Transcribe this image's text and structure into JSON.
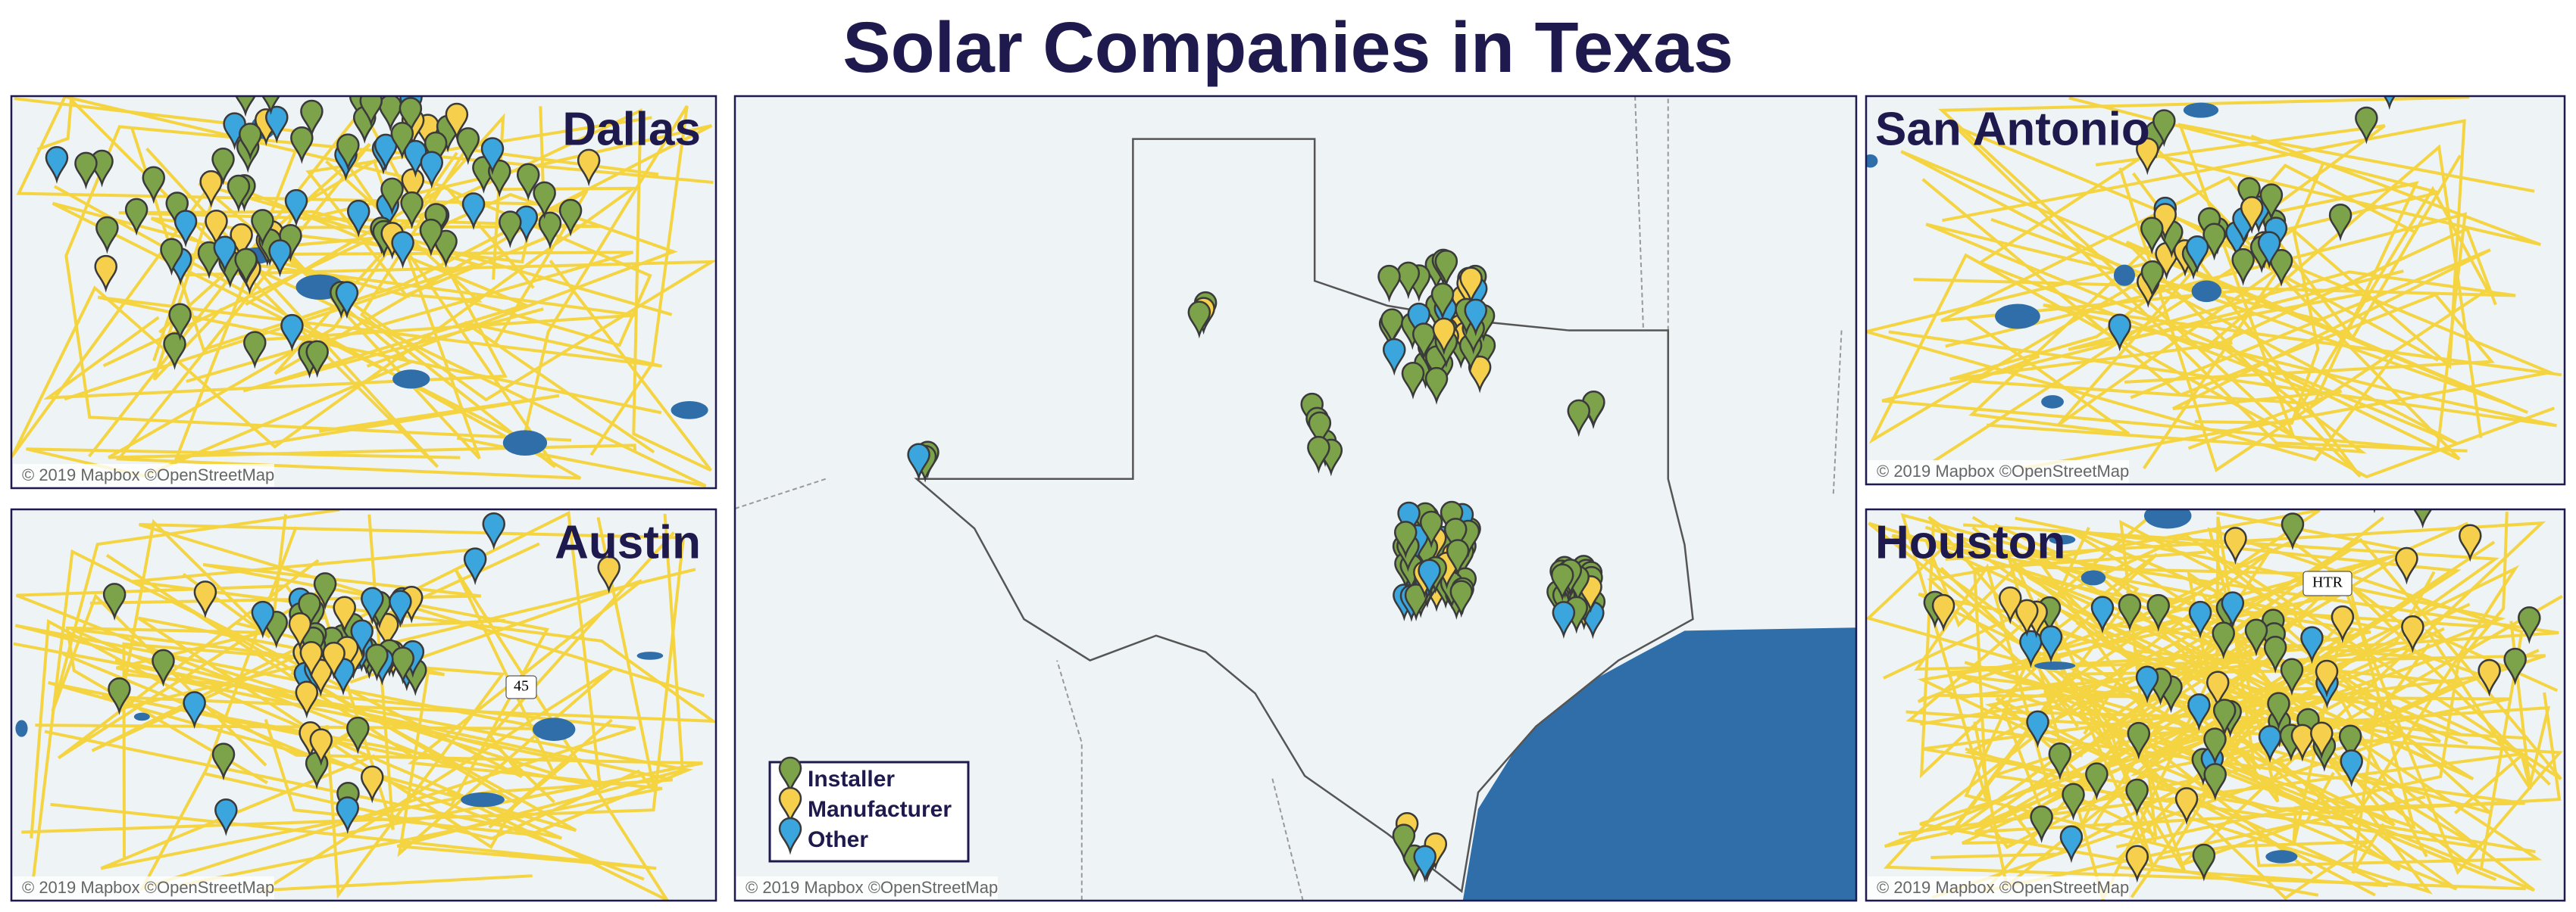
{
  "title": "Solar Companies in Texas",
  "panels": [
    {
      "title": "Dallas",
      "attribution": "© 2019 Mapbox ©OpenStreetMap"
    },
    {
      "title": "Austin",
      "attribution": "© 2019 Mapbox ©OpenStreetMap"
    },
    {
      "attribution": "© 2019 Mapbox ©OpenStreetMap"
    },
    {
      "title": "San Antonio",
      "attribution": "© 2019 Mapbox ©OpenStreetMap"
    },
    {
      "title": "Houston",
      "attribution": "© 2019 Mapbox ©OpenStreetMap"
    }
  ],
  "road_labels": [
    "45",
    "HTR"
  ],
  "legend": {
    "items": [
      {
        "label": "Installer",
        "color": "#7ca24a"
      },
      {
        "label": "Manufacturer",
        "color": "#f6d04d"
      },
      {
        "label": "Other",
        "color": "#3aa6dd"
      }
    ]
  }
}
